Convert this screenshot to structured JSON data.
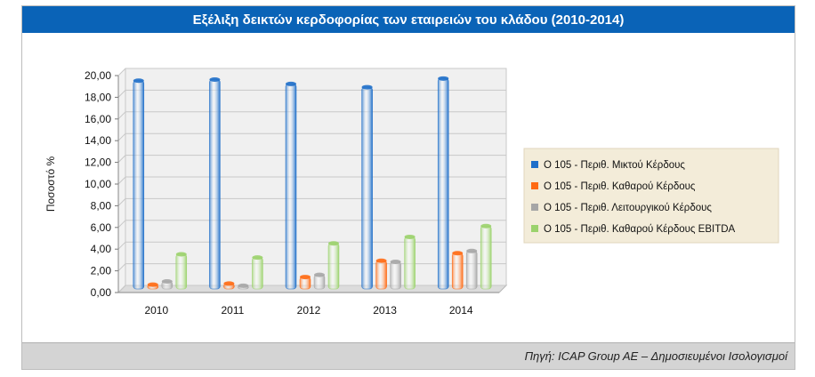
{
  "title": "Εξέλιξη δεικτών κερδοφορίας των εταιρειών του κλάδου (2010-2014)",
  "source": "Πηγή: ICAP Group AE – Δημοσιευμένοι Ισολογισμοί",
  "chart_data": {
    "type": "bar",
    "categories": [
      "2010",
      "2011",
      "2012",
      "2013",
      "2014"
    ],
    "ylabel": "Ποσοστό %",
    "xlabel": "",
    "ylim": [
      0,
      20
    ],
    "yticks": [
      "0,00",
      "2,00",
      "4,00",
      "6,00",
      "8,00",
      "10,00",
      "12,00",
      "14,00",
      "16,00",
      "18,00",
      "20,00"
    ],
    "grid": true,
    "legend_position": "right",
    "series": [
      {
        "name": "Ο 105 - Περιθ. Μικτού Κέρδους",
        "color": "#1f6fc9",
        "values": [
          19.2,
          19.3,
          18.9,
          18.6,
          19.4
        ]
      },
      {
        "name": "Ο 105 - Περιθ. Καθαρού Κέρδους",
        "color": "#ff6a13",
        "values": [
          0.4,
          0.5,
          1.1,
          2.6,
          3.3
        ]
      },
      {
        "name": "Ο 105 - Περιθ. Λειτουργικού Κέρδους",
        "color": "#a6a6a6",
        "values": [
          0.7,
          0.3,
          1.3,
          2.5,
          3.5
        ]
      },
      {
        "name": "Ο 105 - Περιθ. Καθαρού Κέρδους EBITDA",
        "color": "#9bd26c",
        "values": [
          3.2,
          2.9,
          4.2,
          4.8,
          5.8
        ]
      }
    ]
  }
}
